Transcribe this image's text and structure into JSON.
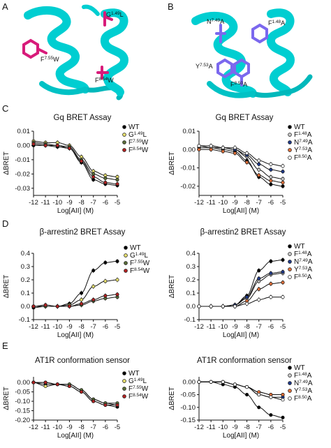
{
  "panels": {
    "A": {
      "label": "A",
      "residues": [
        {
          "name": "G",
          "sup": "1.49",
          "suffix": "L"
        },
        {
          "name": "F",
          "sup": "7.55",
          "suffix": "W"
        },
        {
          "name": "F",
          "sup": "8.54",
          "suffix": "W"
        }
      ]
    },
    "B": {
      "label": "B",
      "residues": [
        {
          "name": "N",
          "sup": "7.49",
          "suffix": "A"
        },
        {
          "name": "F",
          "sup": "1.48",
          "suffix": "A"
        },
        {
          "name": "Y",
          "sup": "7.53",
          "suffix": "A"
        },
        {
          "name": "F",
          "sup": "8.50",
          "suffix": "A"
        }
      ]
    },
    "C": {
      "label": "C"
    },
    "D": {
      "label": "D"
    },
    "E": {
      "label": "E"
    }
  },
  "colors": {
    "helix": "#00CED1",
    "residue_A": "#D81B7A",
    "residue_B": "#7B68EE",
    "WT": "#000000",
    "G149L": "#E8E070",
    "F755W": "#5A6E3A",
    "F854W": "#B22222",
    "F148A": "#C8C8C8",
    "N749A": "#1F3A8A",
    "Y753A": "#E0703A",
    "F850A": "#FFFFFF"
  },
  "legend_sets": {
    "mutA": [
      {
        "name": "WT",
        "sup": "",
        "suffix": "",
        "color": "#000000"
      },
      {
        "name": "G",
        "sup": "1.49",
        "suffix": "L",
        "color": "#E8E070"
      },
      {
        "name": "F",
        "sup": "7.55",
        "suffix": "W",
        "color": "#5A6E3A"
      },
      {
        "name": "F",
        "sup": "8.54",
        "suffix": "W",
        "color": "#B22222"
      }
    ],
    "mutB": [
      {
        "name": "WT",
        "sup": "",
        "suffix": "",
        "color": "#000000"
      },
      {
        "name": "F",
        "sup": "1.48",
        "suffix": "A",
        "color": "#C8C8C8"
      },
      {
        "name": "N",
        "sup": "7.49",
        "suffix": "A",
        "color": "#1F3A8A"
      },
      {
        "name": "Y",
        "sup": "7.53",
        "suffix": "A",
        "color": "#E0703A"
      },
      {
        "name": "F",
        "sup": "8.50",
        "suffix": "A",
        "color": "#FFFFFF"
      }
    ]
  },
  "chart_data": [
    {
      "id": "C-left",
      "panel": "C",
      "type": "scatter",
      "title": "Gq BRET Assay",
      "xlabel": "Log[AII] (M)",
      "ylabel": "ΔBRET",
      "legend": "mutA",
      "xlim": [
        -12,
        -5
      ],
      "ylim": [
        -0.035,
        0.01
      ],
      "xticks": [
        -12,
        -11,
        -10,
        -9,
        -8,
        -7,
        -6,
        -5
      ],
      "yticks": [
        0.01,
        0.0,
        -0.01,
        -0.02,
        -0.03
      ],
      "ytick_labels": [
        "0.01",
        "0.00",
        "-0.01",
        "-0.02",
        "-0.03"
      ],
      "x": [
        -12,
        -11,
        -10,
        -9,
        -8,
        -7,
        -6,
        -5
      ],
      "series": [
        {
          "legend_index": 0,
          "values": [
            0.0,
            0.0,
            -0.001,
            -0.002,
            -0.012,
            -0.024,
            -0.027,
            -0.028
          ]
        },
        {
          "legend_index": 1,
          "values": [
            0.003,
            0.002,
            0.002,
            0.0,
            -0.008,
            -0.018,
            -0.021,
            -0.022
          ]
        },
        {
          "legend_index": 2,
          "values": [
            0.002,
            0.001,
            0.0,
            -0.001,
            -0.01,
            -0.02,
            -0.023,
            -0.024
          ]
        },
        {
          "legend_index": 3,
          "values": [
            0.001,
            0.0,
            0.0,
            -0.002,
            -0.011,
            -0.022,
            -0.026,
            -0.027
          ]
        }
      ]
    },
    {
      "id": "C-right",
      "panel": "C",
      "type": "scatter",
      "title": "Gq BRET Assay",
      "xlabel": "Log[AII] (M)",
      "ylabel": "ΔBRET",
      "legend": "mutB",
      "xlim": [
        -12,
        -5
      ],
      "ylim": [
        -0.025,
        0.01
      ],
      "xticks": [
        -12,
        -11,
        -10,
        -9,
        -8,
        -7,
        -6,
        -5
      ],
      "yticks": [
        0.01,
        0.0,
        -0.01,
        -0.02
      ],
      "ytick_labels": [
        "0.01",
        "0.00",
        "-0.01",
        "-0.02"
      ],
      "x": [
        -12,
        -11,
        -10,
        -9,
        -8,
        -7,
        -6,
        -5
      ],
      "series": [
        {
          "legend_index": 0,
          "values": [
            0.001,
            0.001,
            0.0,
            -0.001,
            -0.006,
            -0.015,
            -0.019,
            -0.02
          ]
        },
        {
          "legend_index": 1,
          "values": [
            0.002,
            0.001,
            0.001,
            0.0,
            -0.004,
            -0.011,
            -0.015,
            -0.016
          ]
        },
        {
          "legend_index": 2,
          "values": [
            0.002,
            0.002,
            0.001,
            0.0,
            -0.003,
            -0.008,
            -0.011,
            -0.012
          ]
        },
        {
          "legend_index": 3,
          "values": [
            0.0,
            0.0,
            -0.001,
            -0.002,
            -0.007,
            -0.014,
            -0.017,
            -0.018
          ]
        },
        {
          "legend_index": 4,
          "values": [
            0.002,
            0.002,
            0.001,
            0.001,
            -0.002,
            -0.006,
            -0.008,
            -0.009
          ]
        }
      ]
    },
    {
      "id": "D-left",
      "panel": "D",
      "type": "scatter",
      "title": "β-arrestin2 BRET Assay",
      "xlabel": "Log[AII] (M)",
      "ylabel": "ΔBRET",
      "legend": "mutA",
      "xlim": [
        -12,
        -5
      ],
      "ylim": [
        -0.1,
        0.4
      ],
      "xticks": [
        -12,
        -11,
        -10,
        -9,
        -8,
        -7,
        -6,
        -5
      ],
      "yticks": [
        0.4,
        0.3,
        0.2,
        0.1,
        0.0,
        -0.1
      ],
      "ytick_labels": [
        "0.4",
        "0.3",
        "0.2",
        "0.1",
        "0.0",
        "-0.1"
      ],
      "x": [
        -12,
        -11,
        -10,
        -9,
        -8,
        -7,
        -6,
        -5
      ],
      "series": [
        {
          "legend_index": 0,
          "values": [
            -0.01,
            0.0,
            0.0,
            0.02,
            0.1,
            0.27,
            0.33,
            0.34
          ]
        },
        {
          "legend_index": 1,
          "values": [
            0.0,
            0.0,
            0.0,
            0.01,
            0.05,
            0.15,
            0.19,
            0.2
          ]
        },
        {
          "legend_index": 2,
          "values": [
            0.0,
            0.0,
            0.0,
            0.0,
            0.01,
            0.04,
            0.06,
            0.07
          ]
        },
        {
          "legend_index": 3,
          "values": [
            0.0,
            0.01,
            0.0,
            0.0,
            0.02,
            0.05,
            0.08,
            0.09
          ]
        }
      ]
    },
    {
      "id": "D-right",
      "panel": "D",
      "type": "scatter",
      "title": "β-arrestin2 BRET Assay",
      "xlabel": "Log[AII] (M)",
      "ylabel": "ΔBRET",
      "legend": "mutB",
      "xlim": [
        -12,
        -5
      ],
      "ylim": [
        -0.1,
        0.4
      ],
      "xticks": [
        -12,
        -11,
        -10,
        -9,
        -8,
        -7,
        -6,
        -5
      ],
      "yticks": [
        0.4,
        0.3,
        0.2,
        0.1,
        0.0,
        -0.1
      ],
      "ytick_labels": [
        "0.4",
        "0.3",
        "0.2",
        "0.1",
        "0.0",
        "-0.1"
      ],
      "x": [
        -12,
        -11,
        -10,
        -9,
        -8,
        -7,
        -6,
        -5
      ],
      "series": [
        {
          "legend_index": 0,
          "values": [
            0.0,
            0.0,
            0.0,
            0.01,
            0.08,
            0.27,
            0.34,
            0.35
          ]
        },
        {
          "legend_index": 1,
          "values": [
            0.0,
            0.0,
            0.0,
            0.01,
            0.06,
            0.19,
            0.24,
            0.25
          ]
        },
        {
          "legend_index": 2,
          "values": [
            0.0,
            0.0,
            0.0,
            0.01,
            0.07,
            0.21,
            0.25,
            0.26
          ]
        },
        {
          "legend_index": 3,
          "values": [
            0.0,
            0.0,
            0.0,
            0.0,
            0.04,
            0.13,
            0.17,
            0.18
          ]
        },
        {
          "legend_index": 4,
          "values": [
            0.0,
            0.0,
            0.0,
            0.0,
            0.02,
            0.05,
            0.07,
            0.07
          ]
        }
      ]
    },
    {
      "id": "E-left",
      "panel": "E",
      "type": "scatter",
      "title": "AT1R conformation sensor",
      "xlabel": "Log[AII] (M)",
      "ylabel": "ΔBRET",
      "legend": "mutA",
      "xlim": [
        -12,
        -5
      ],
      "ylim": [
        -0.2,
        0.03
      ],
      "xticks": [
        -12,
        -11,
        -10,
        -9,
        -8,
        -7,
        -6,
        -5
      ],
      "yticks": [
        0.0,
        -0.05,
        -0.1,
        -0.15,
        -0.2
      ],
      "ytick_labels": [
        "0.00",
        "-0.05",
        "-0.10",
        "-0.15",
        "-0.20"
      ],
      "x": [
        -12,
        -11,
        -10,
        -9,
        -8,
        -7,
        -6,
        -5
      ],
      "series": [
        {
          "legend_index": 0,
          "values": [
            0.0,
            -0.01,
            -0.01,
            -0.02,
            -0.05,
            -0.1,
            -0.12,
            -0.13
          ]
        },
        {
          "legend_index": 1,
          "values": [
            0.0,
            -0.02,
            -0.01,
            -0.01,
            -0.04,
            -0.09,
            -0.11,
            -0.12
          ]
        },
        {
          "legend_index": 2,
          "values": [
            0.0,
            0.0,
            -0.01,
            -0.01,
            -0.04,
            -0.09,
            -0.11,
            -0.11
          ]
        },
        {
          "legend_index": 3,
          "values": [
            0.0,
            0.0,
            -0.01,
            -0.02,
            -0.05,
            -0.1,
            -0.12,
            -0.12
          ]
        }
      ]
    },
    {
      "id": "E-right",
      "panel": "E",
      "type": "scatter",
      "title": "AT1R conformation sensor",
      "xlabel": "Log[AII] (M)",
      "ylabel": "ΔBRET",
      "legend": "mutB",
      "xlim": [
        -12,
        -5
      ],
      "ylim": [
        -0.15,
        0.02
      ],
      "xticks": [
        -12,
        -11,
        -10,
        -9,
        -8,
        -7,
        -6,
        -5
      ],
      "yticks": [
        0.0,
        -0.05,
        -0.1,
        -0.15
      ],
      "ytick_labels": [
        "0.00",
        "-0.05",
        "-0.10",
        "-0.15"
      ],
      "x": [
        -12,
        -11,
        -10,
        -9,
        -8,
        -7,
        -6,
        -5
      ],
      "series": [
        {
          "legend_index": 0,
          "values": [
            0.0,
            0.0,
            -0.01,
            -0.02,
            -0.05,
            -0.1,
            -0.13,
            -0.14
          ]
        },
        {
          "legend_index": 1,
          "values": [
            0.0,
            0.0,
            0.0,
            -0.01,
            -0.02,
            -0.04,
            -0.05,
            -0.05
          ]
        },
        {
          "legend_index": 2,
          "values": [
            0.0,
            0.0,
            0.0,
            -0.01,
            -0.02,
            -0.05,
            -0.06,
            -0.06
          ]
        },
        {
          "legend_index": 3,
          "values": [
            0.0,
            0.0,
            0.0,
            -0.01,
            -0.02,
            -0.04,
            -0.05,
            -0.05
          ]
        },
        {
          "legend_index": 4,
          "values": [
            0.0,
            0.0,
            0.0,
            -0.01,
            -0.02,
            -0.05,
            -0.06,
            -0.07
          ]
        }
      ]
    }
  ]
}
